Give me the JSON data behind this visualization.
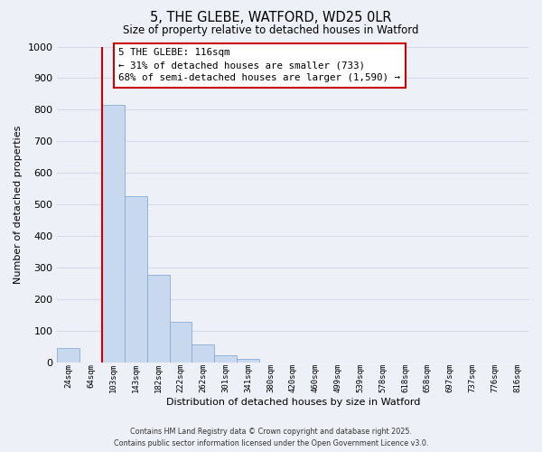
{
  "title_line1": "5, THE GLEBE, WATFORD, WD25 0LR",
  "title_line2": "Size of property relative to detached houses in Watford",
  "xlabel": "Distribution of detached houses by size in Watford",
  "ylabel": "Number of detached properties",
  "bar_labels": [
    "24sqm",
    "64sqm",
    "103sqm",
    "143sqm",
    "182sqm",
    "222sqm",
    "262sqm",
    "301sqm",
    "341sqm",
    "380sqm",
    "420sqm",
    "460sqm",
    "499sqm",
    "539sqm",
    "578sqm",
    "618sqm",
    "658sqm",
    "697sqm",
    "737sqm",
    "776sqm",
    "816sqm"
  ],
  "bar_values": [
    46,
    0,
    815,
    527,
    278,
    127,
    57,
    22,
    10,
    0,
    0,
    0,
    0,
    0,
    0,
    0,
    0,
    0,
    0,
    0,
    0
  ],
  "bar_color": "#c8d8ee",
  "bar_edge_color": "#8aaad0",
  "ylim": [
    0,
    1000
  ],
  "yticks": [
    0,
    100,
    200,
    300,
    400,
    500,
    600,
    700,
    800,
    900,
    1000
  ],
  "vline_bar_index": 2,
  "property_line_label": "5 THE GLEBE: 116sqm",
  "annotation_line1": "← 31% of detached houses are smaller (733)",
  "annotation_line2": "68% of semi-detached houses are larger (1,590) →",
  "vline_color": "#cc0000",
  "background_color": "#eef0f8",
  "grid_color": "#d8dce8",
  "footer_line1": "Contains HM Land Registry data © Crown copyright and database right 2025.",
  "footer_line2": "Contains public sector information licensed under the Open Government Licence v3.0."
}
